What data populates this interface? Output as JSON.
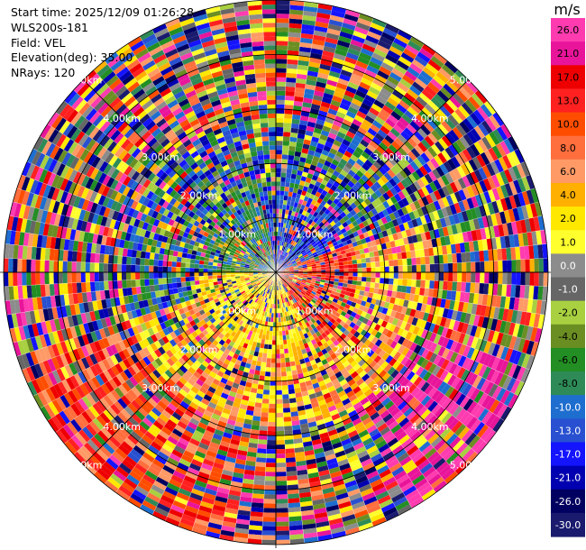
{
  "header": {
    "start_time": "Start time: 2025/12/09 01:26:28",
    "instrument": "WLS200s-181",
    "field": "Field: VEL",
    "elevation": "Elevation(deg): 35.00",
    "nrays": "NRays: 120"
  },
  "chart_data": {
    "type": "heatmap",
    "projection": "polar-ppi",
    "n_rays": 120,
    "n_gates": 60,
    "max_range_km": 5.0,
    "range_rings_km": [
      1.0,
      2.0,
      3.0,
      4.0,
      5.0
    ],
    "ring_labels": [
      "1.00km",
      "2.00km",
      "3.00km",
      "4.00km",
      "5.00km"
    ],
    "spokes": 8,
    "colorbar": {
      "unit": "m/s",
      "ticks": [
        "26.0",
        "21.0",
        "17.0",
        "13.0",
        "10.0",
        "8.0",
        "6.0",
        "4.0",
        "2.0",
        "1.0",
        "0.0",
        "-1.0",
        "-2.0",
        "-4.0",
        "-6.0",
        "-8.0",
        "-10.0",
        "-13.0",
        "-17.0",
        "-21.0",
        "-26.0",
        "-30.0"
      ],
      "colors": [
        "#ff3bb0",
        "#e8159a",
        "#ee0000",
        "#ff2020",
        "#ff4d00",
        "#ff6e3d",
        "#ff9a66",
        "#ffb000",
        "#ffe800",
        "#ffff2e",
        "#8c8c8c",
        "#666666",
        "#a8d040",
        "#6b8e23",
        "#238e23",
        "#2e8b57",
        "#1e6ed0",
        "#2850d0",
        "#1414ff",
        "#0000b0",
        "#000060",
        "#1a1a6e"
      ]
    }
  }
}
